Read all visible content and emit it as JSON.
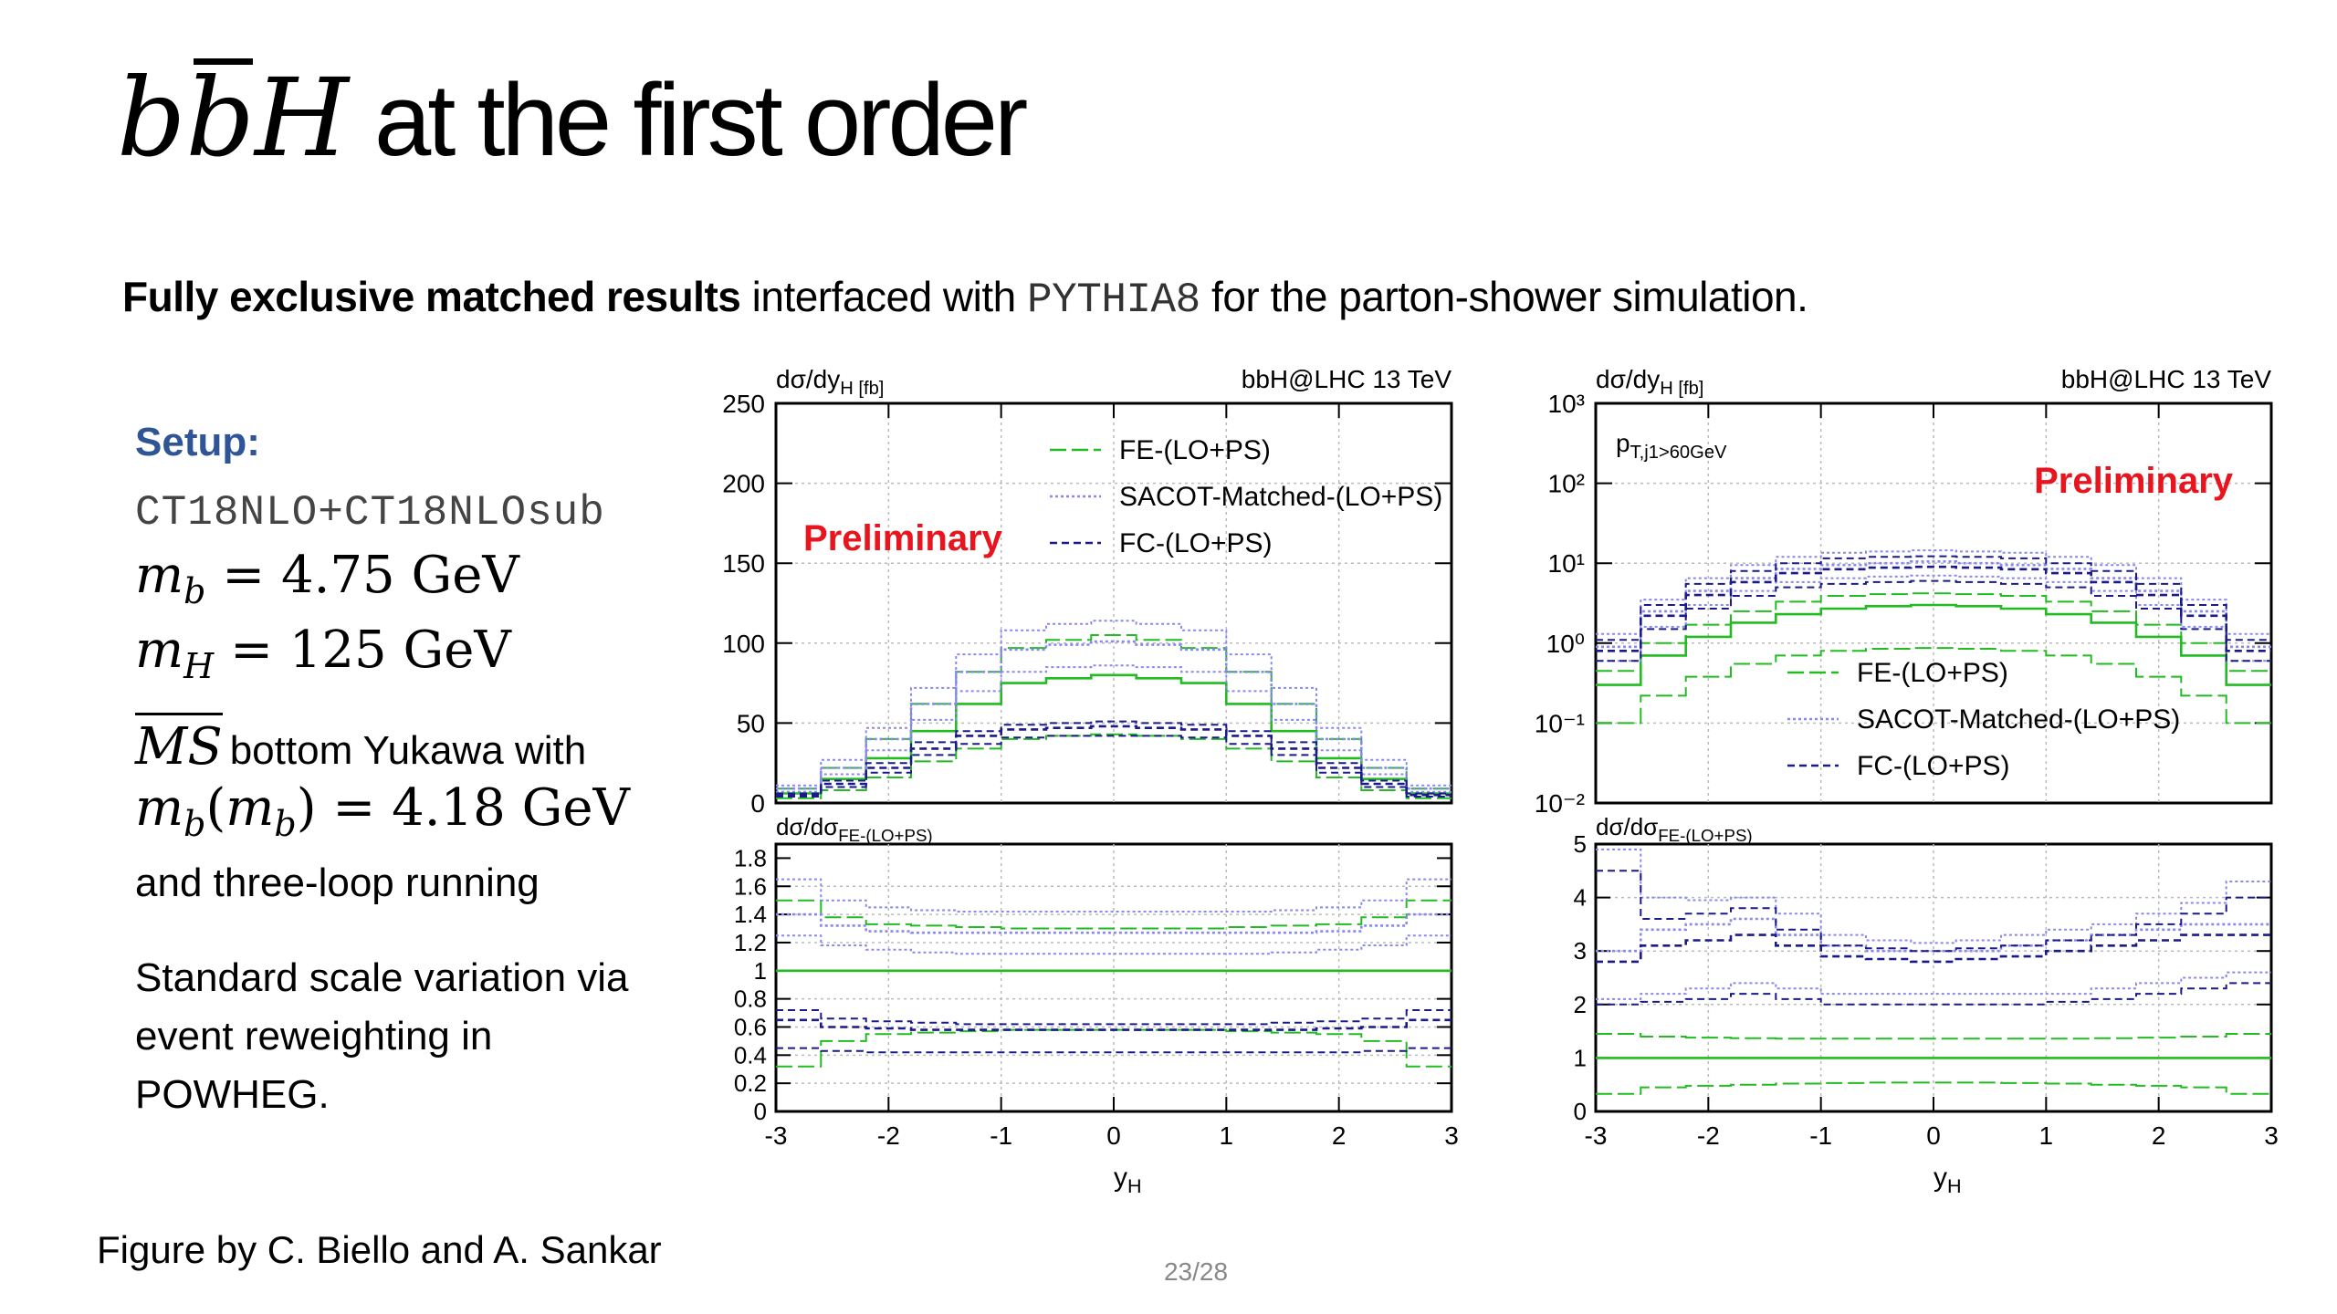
{
  "slide": {
    "title_math_b": "b",
    "title_math_bbar": "b",
    "title_math_H": "H",
    "title_rest": "at the first order",
    "subtitle_bold": "Fully exclusive matched results",
    "subtitle_pre": "interfaced with",
    "subtitle_mono": "PYTHIA8",
    "subtitle_post": "for the parton-shower simulation.",
    "setup_heading": "Setup:",
    "pdf_set": "CT18NLO+CT18NLOsub",
    "mb_sym": "m",
    "mb_sub": "b",
    "mb_val": "= 4.75 GeV",
    "mh_sym": "m",
    "mh_sub": "H",
    "mh_val": "= 125 GeV",
    "ms_label": "MS",
    "ms_text": "bottom Yukawa with",
    "mbmb_sym": "m",
    "mbmb_sub": "b",
    "mbmb_arg_sym": "m",
    "mbmb_arg_sub": "b",
    "mbmb_val": "= 4.18 GeV",
    "running_text": "and three-loop running",
    "scale_line1": "Standard scale variation via",
    "scale_line2": "event reweighting in",
    "scale_line3": "POWHEG.",
    "caption": "Figure by C. Biello and A. Sankar",
    "page": "23/28"
  },
  "colors": {
    "FE": "#22bb22",
    "SACOT": "#8888ee",
    "FC": "#1a1a88",
    "preliminary": "#e8141e",
    "setup_heading": "#2f5597"
  },
  "chart_data": [
    {
      "type": "line",
      "step": true,
      "ylabel": "dσ/dy_H [fb]",
      "process": "bbH@LHC 13 TeV",
      "annotation": "Preliminary",
      "cut_label": "",
      "ylim": [
        0,
        250
      ],
      "yscale": "linear",
      "yticks": [
        "0",
        "50",
        "100",
        "150",
        "200",
        "250"
      ],
      "legend": [
        "FE-(LO+PS)",
        "SACOT-Matched-(LO+PS)",
        "FC-(LO+PS)"
      ],
      "legend_position": "top-right",
      "grid": true,
      "xlim": [
        -3,
        3
      ],
      "bin_edges": [
        -3,
        -2.6,
        -2.2,
        -1.8,
        -1.4,
        -1.0,
        -0.6,
        -0.2,
        0.2,
        0.6,
        1.0,
        1.4,
        1.8,
        2.2,
        2.6,
        3.0
      ],
      "series": [
        {
          "name": "FE-(LO+PS)",
          "band": "central",
          "values": [
            6,
            15,
            28,
            45,
            62,
            75,
            78,
            80,
            78,
            75,
            62,
            45,
            28,
            15,
            6
          ]
        },
        {
          "name": "FE-(LO+PS)",
          "band": "upper",
          "values": [
            9,
            22,
            40,
            62,
            82,
            97,
            102,
            105,
            102,
            97,
            82,
            62,
            40,
            22,
            9
          ]
        },
        {
          "name": "FE-(LO+PS)",
          "band": "lower",
          "values": [
            3,
            8,
            16,
            26,
            34,
            40,
            42,
            43,
            42,
            40,
            34,
            26,
            16,
            8,
            3
          ]
        },
        {
          "name": "SACOT-Matched-(LO+PS)",
          "band": "central",
          "values": [
            9,
            22,
            40,
            62,
            82,
            96,
            99,
            101,
            99,
            96,
            82,
            62,
            40,
            22,
            9
          ]
        },
        {
          "name": "SACOT-Matched-(LO+PS)",
          "band": "upper",
          "values": [
            11,
            27,
            47,
            72,
            93,
            108,
            112,
            114,
            112,
            108,
            93,
            72,
            47,
            27,
            11
          ]
        },
        {
          "name": "SACOT-Matched-(LO+PS)",
          "band": "lower",
          "values": [
            7,
            18,
            33,
            52,
            70,
            82,
            85,
            86,
            85,
            82,
            70,
            52,
            33,
            18,
            7
          ]
        },
        {
          "name": "FC-(LO+PS)",
          "band": "central",
          "values": [
            5,
            12,
            22,
            34,
            42,
            46,
            47,
            48,
            47,
            46,
            42,
            34,
            22,
            12,
            5
          ]
        },
        {
          "name": "FC-(LO+PS)",
          "band": "upper",
          "values": [
            6,
            14,
            25,
            38,
            45,
            49,
            50,
            51,
            50,
            49,
            45,
            38,
            25,
            14,
            6
          ]
        },
        {
          "name": "FC-(LO+PS)",
          "band": "lower",
          "values": [
            4,
            10,
            19,
            30,
            37,
            41,
            42,
            42,
            42,
            41,
            37,
            30,
            19,
            10,
            4
          ]
        }
      ],
      "ratio": {
        "ylabel": "dσ/dσ_FE-(LO+PS)",
        "ylim": [
          0,
          1.9
        ],
        "yticks": [
          "0",
          "0.2",
          "0.4",
          "0.6",
          "0.8",
          "1",
          "1.2",
          "1.4",
          "1.6",
          "1.8"
        ],
        "series": [
          {
            "name": "FE-(LO+PS)",
            "band": "central",
            "values": [
              1,
              1,
              1,
              1,
              1,
              1,
              1,
              1,
              1,
              1,
              1,
              1,
              1,
              1,
              1
            ]
          },
          {
            "name": "FE-(LO+PS)",
            "band": "upper",
            "values": [
              1.5,
              1.38,
              1.33,
              1.32,
              1.31,
              1.3,
              1.3,
              1.3,
              1.3,
              1.3,
              1.31,
              1.32,
              1.33,
              1.38,
              1.5
            ]
          },
          {
            "name": "FE-(LO+PS)",
            "band": "lower",
            "values": [
              0.32,
              0.5,
              0.55,
              0.56,
              0.57,
              0.58,
              0.58,
              0.58,
              0.58,
              0.58,
              0.57,
              0.56,
              0.55,
              0.5,
              0.32
            ]
          },
          {
            "name": "SACOT-Matched-(LO+PS)",
            "band": "central",
            "values": [
              1.4,
              1.32,
              1.28,
              1.27,
              1.27,
              1.27,
              1.27,
              1.27,
              1.27,
              1.27,
              1.27,
              1.27,
              1.28,
              1.32,
              1.4
            ]
          },
          {
            "name": "SACOT-Matched-(LO+PS)",
            "band": "upper",
            "values": [
              1.65,
              1.5,
              1.45,
              1.43,
              1.42,
              1.42,
              1.42,
              1.42,
              1.42,
              1.42,
              1.42,
              1.43,
              1.45,
              1.5,
              1.65
            ]
          },
          {
            "name": "SACOT-Matched-(LO+PS)",
            "band": "lower",
            "values": [
              1.25,
              1.18,
              1.15,
              1.13,
              1.12,
              1.12,
              1.12,
              1.12,
              1.12,
              1.12,
              1.12,
              1.13,
              1.15,
              1.18,
              1.25
            ]
          },
          {
            "name": "FC-(LO+PS)",
            "band": "central",
            "values": [
              0.65,
              0.6,
              0.59,
              0.58,
              0.58,
              0.58,
              0.58,
              0.58,
              0.58,
              0.58,
              0.58,
              0.58,
              0.59,
              0.6,
              0.65
            ]
          },
          {
            "name": "FC-(LO+PS)",
            "band": "upper",
            "values": [
              0.72,
              0.66,
              0.64,
              0.63,
              0.62,
              0.62,
              0.62,
              0.62,
              0.62,
              0.62,
              0.62,
              0.63,
              0.64,
              0.66,
              0.72
            ]
          },
          {
            "name": "FC-(LO+PS)",
            "band": "lower",
            "values": [
              0.45,
              0.43,
              0.42,
              0.42,
              0.42,
              0.42,
              0.42,
              0.42,
              0.42,
              0.42,
              0.42,
              0.42,
              0.42,
              0.43,
              0.45
            ]
          }
        ]
      },
      "xlabel": "y_H",
      "xticks": [
        "-3",
        "-2",
        "-1",
        "0",
        "1",
        "2",
        "3"
      ]
    },
    {
      "type": "line",
      "step": true,
      "ylabel": "dσ/dy_H [fb]",
      "process": "bbH@LHC 13 TeV",
      "annotation": "Preliminary",
      "cut_label": "p_T,j1>60GeV",
      "ylim": [
        0.01,
        1000
      ],
      "yscale": "log",
      "yticks": [
        "10⁻²",
        "10⁻¹",
        "10⁰",
        "10¹",
        "10²",
        "10³"
      ],
      "legend": [
        "FE-(LO+PS)",
        "SACOT-Matched-(LO+PS)",
        "FC-(LO+PS)"
      ],
      "legend_position": "bottom-center",
      "grid": true,
      "xlim": [
        -3,
        3
      ],
      "bin_edges": [
        -3,
        -2.6,
        -2.2,
        -1.8,
        -1.4,
        -1.0,
        -0.6,
        -0.2,
        0.2,
        0.6,
        1.0,
        1.4,
        1.8,
        2.2,
        2.6,
        3.0
      ],
      "series": [
        {
          "name": "FE-(LO+PS)",
          "band": "central",
          "values": [
            0.3,
            0.7,
            1.2,
            1.8,
            2.3,
            2.7,
            2.9,
            3.0,
            2.9,
            2.7,
            2.3,
            1.8,
            1.2,
            0.7,
            0.3
          ]
        },
        {
          "name": "FE-(LO+PS)",
          "band": "upper",
          "values": [
            0.45,
            1.0,
            1.7,
            2.5,
            3.3,
            3.9,
            4.1,
            4.2,
            4.1,
            3.9,
            3.3,
            2.5,
            1.7,
            1.0,
            0.45
          ]
        },
        {
          "name": "FE-(LO+PS)",
          "band": "lower",
          "values": [
            0.1,
            0.22,
            0.38,
            0.55,
            0.7,
            0.8,
            0.85,
            0.87,
            0.85,
            0.8,
            0.7,
            0.55,
            0.38,
            0.22,
            0.1
          ]
        },
        {
          "name": "SACOT-Matched-(LO+PS)",
          "band": "central",
          "values": [
            0.9,
            2.5,
            4.5,
            6.5,
            8.5,
            9.5,
            10,
            10.5,
            10,
            9.5,
            8.5,
            6.5,
            4.5,
            2.5,
            0.9
          ]
        },
        {
          "name": "SACOT-Matched-(LO+PS)",
          "band": "upper",
          "values": [
            1.3,
            3.5,
            6.5,
            9.5,
            12,
            13.5,
            14,
            14.5,
            14,
            13.5,
            12,
            9.5,
            6.5,
            3.5,
            1.3
          ]
        },
        {
          "name": "SACOT-Matched-(LO+PS)",
          "band": "lower",
          "values": [
            0.6,
            1.6,
            3,
            4.5,
            5.8,
            6.5,
            6.8,
            7,
            6.8,
            6.5,
            5.8,
            4.5,
            3,
            1.6,
            0.6
          ]
        },
        {
          "name": "FC-(LO+PS)",
          "band": "central",
          "values": [
            0.8,
            2.2,
            4.0,
            5.8,
            7.5,
            8.4,
            8.8,
            9.0,
            8.8,
            8.4,
            7.5,
            5.8,
            4.0,
            2.2,
            0.8
          ]
        },
        {
          "name": "FC-(LO+PS)",
          "band": "upper",
          "values": [
            1.1,
            3.0,
            5.5,
            8.0,
            10,
            11.5,
            12,
            12.2,
            12,
            11.5,
            10,
            8.0,
            5.5,
            3.0,
            1.1
          ]
        },
        {
          "name": "FC-(LO+PS)",
          "band": "lower",
          "values": [
            0.6,
            1.5,
            2.7,
            3.9,
            5.0,
            5.5,
            5.8,
            6.0,
            5.8,
            5.5,
            5.0,
            3.9,
            2.7,
            1.5,
            0.6
          ]
        }
      ],
      "ratio": {
        "ylabel": "dσ/dσ_FE-(LO+PS)",
        "ylim": [
          0,
          5
        ],
        "yticks": [
          "0",
          "1",
          "2",
          "3",
          "4",
          "5"
        ],
        "series": [
          {
            "name": "FE-(LO+PS)",
            "band": "central",
            "values": [
              1,
              1,
              1,
              1,
              1,
              1,
              1,
              1,
              1,
              1,
              1,
              1,
              1,
              1,
              1
            ]
          },
          {
            "name": "FE-(LO+PS)",
            "band": "upper",
            "values": [
              1.45,
              1.4,
              1.38,
              1.37,
              1.36,
              1.36,
              1.36,
              1.36,
              1.36,
              1.36,
              1.36,
              1.37,
              1.38,
              1.4,
              1.45
            ]
          },
          {
            "name": "FE-(LO+PS)",
            "band": "lower",
            "values": [
              0.33,
              0.45,
              0.48,
              0.5,
              0.52,
              0.53,
              0.54,
              0.54,
              0.54,
              0.53,
              0.52,
              0.5,
              0.48,
              0.45,
              0.33
            ]
          },
          {
            "name": "SACOT-Matched-(LO+PS)",
            "band": "central",
            "values": [
              3.0,
              3.4,
              3.5,
              3.6,
              3.3,
              3.1,
              3.0,
              3.0,
              3.0,
              3.1,
              3.2,
              3.3,
              3.4,
              3.5,
              3.5
            ]
          },
          {
            "name": "SACOT-Matched-(LO+PS)",
            "band": "upper",
            "values": [
              4.9,
              4.0,
              3.95,
              4.0,
              3.7,
              3.3,
              3.2,
              3.15,
              3.2,
              3.3,
              3.4,
              3.5,
              3.7,
              3.9,
              4.3
            ]
          },
          {
            "name": "SACOT-Matched-(LO+PS)",
            "band": "lower",
            "values": [
              2.1,
              2.2,
              2.3,
              2.4,
              2.3,
              2.2,
              2.2,
              2.2,
              2.2,
              2.2,
              2.2,
              2.3,
              2.4,
              2.5,
              2.6
            ]
          },
          {
            "name": "FC-(LO+PS)",
            "band": "central",
            "values": [
              2.8,
              3.1,
              3.2,
              3.3,
              3.1,
              2.9,
              2.85,
              2.8,
              2.85,
              2.9,
              3.0,
              3.1,
              3.2,
              3.3,
              3.3
            ]
          },
          {
            "name": "FC-(LO+PS)",
            "band": "upper",
            "values": [
              4.5,
              3.6,
              3.7,
              3.8,
              3.4,
              3.1,
              3.05,
              3.0,
              3.05,
              3.1,
              3.2,
              3.3,
              3.5,
              3.7,
              4.0
            ]
          },
          {
            "name": "FC-(LO+PS)",
            "band": "lower",
            "values": [
              2.0,
              2.05,
              2.1,
              2.2,
              2.1,
              2.0,
              2.0,
              2.0,
              2.0,
              2.0,
              2.05,
              2.1,
              2.2,
              2.3,
              2.4
            ]
          }
        ]
      },
      "xlabel": "y_H",
      "xticks": [
        "-3",
        "-2",
        "-1",
        "0",
        "1",
        "2",
        "3"
      ]
    }
  ]
}
